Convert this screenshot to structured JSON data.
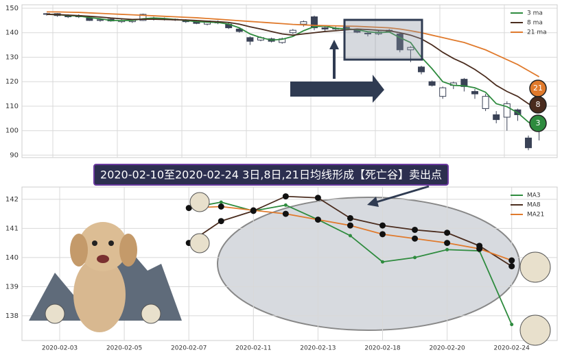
{
  "chart_data": [
    {
      "type": "candlestick",
      "ylim": [
        89,
        151.4
      ],
      "yticks": [
        90,
        100,
        110,
        120,
        130,
        140,
        150
      ],
      "grid": true,
      "legend": "upper right",
      "open": [
        147.5,
        147.8,
        147,
        146.5,
        146,
        145,
        145.5,
        144.5,
        144.5,
        145,
        146,
        145.8,
        145.5,
        145,
        144.5,
        143.5,
        144.5,
        143.5,
        141.5,
        138,
        137,
        137.5,
        136,
        140,
        143.5,
        146.5,
        142,
        141.5,
        142.2,
        141,
        139.8,
        139.5,
        140.5,
        139.5,
        133,
        126,
        120,
        114,
        118.5,
        121,
        116,
        109,
        106.5,
        105.5,
        108.5,
        97,
        100
      ],
      "high": [
        148,
        148,
        147.5,
        147.5,
        146.5,
        145.8,
        146,
        145.5,
        145.5,
        147.8,
        146.5,
        146.2,
        145.8,
        145.5,
        145,
        145,
        145,
        144,
        142,
        138.5,
        138.5,
        138,
        138,
        141.5,
        145,
        147,
        142.5,
        142.5,
        142.5,
        141.3,
        140.5,
        141,
        141.5,
        140,
        134.5,
        126.5,
        120.5,
        118,
        120,
        121.5,
        117,
        115,
        108,
        112,
        109,
        98,
        104
      ],
      "low": [
        147,
        146.5,
        146,
        146,
        144.8,
        144.5,
        144.5,
        144,
        144,
        144.8,
        145,
        145,
        144.8,
        144,
        143.5,
        143,
        143.5,
        141.5,
        140,
        135,
        136.5,
        136,
        135.5,
        139.5,
        142.5,
        141,
        140.5,
        141,
        141.2,
        139.8,
        138.5,
        139,
        140,
        132,
        128,
        123,
        118,
        113,
        117,
        116,
        113,
        108,
        103,
        100,
        104,
        92,
        96
      ],
      "close": [
        147.8,
        147,
        146.5,
        147,
        145,
        145.3,
        144.8,
        145,
        145.3,
        147.5,
        145.5,
        145.5,
        145.2,
        144.5,
        143.8,
        144.8,
        144,
        142,
        140.5,
        136.5,
        138,
        136.5,
        137.5,
        141,
        144.5,
        142,
        141.5,
        141.8,
        141.7,
        140.2,
        139.5,
        140.3,
        141,
        133,
        134,
        124,
        118.5,
        117.5,
        119.5,
        118,
        115,
        114,
        104.5,
        111,
        106.5,
        93,
        103
      ],
      "up_color": "#ffffff",
      "down_color": "#3a4256",
      "series": [
        {
          "name": "3 ma",
          "color": "#2e8b3e",
          "values": [
            147.5,
            147.4,
            147,
            146.8,
            146.2,
            145.7,
            145,
            145,
            145,
            145.7,
            146,
            145.8,
            145.4,
            145,
            144.5,
            144.3,
            144.2,
            143.5,
            142,
            139.5,
            138,
            137,
            137.3,
            138.5,
            140.8,
            142.5,
            142.7,
            141.8,
            141.6,
            141.2,
            140.4,
            140,
            140.3,
            138,
            136,
            130,
            125.3,
            120,
            118.5,
            118.3,
            117.5,
            115.7,
            111,
            109.8,
            107.3,
            103.5,
            100.8
          ]
        },
        {
          "name": "8 ma",
          "color": "#4a2c1e",
          "values": [
            147.5,
            147.4,
            147.2,
            147,
            146.7,
            146.4,
            146,
            145.7,
            145.4,
            145.5,
            145.5,
            145.4,
            145.3,
            145.2,
            145,
            144.7,
            144.5,
            144.2,
            143.5,
            142.4,
            141.5,
            140.5,
            139.5,
            139,
            139.5,
            140,
            140.5,
            140.8,
            141.2,
            141.5,
            141.3,
            141,
            140.8,
            140,
            139,
            137.5,
            135,
            132,
            129.5,
            127.5,
            125,
            122,
            118.5,
            116,
            114,
            111,
            108.5
          ]
        },
        {
          "name": "21 ma",
          "color": "#e07a2c",
          "values": [
            148.5,
            148.5,
            148.4,
            148.3,
            148.1,
            147.9,
            147.7,
            147.5,
            147.3,
            147.1,
            146.9,
            146.7,
            146.5,
            146.3,
            146.1,
            145.8,
            145.5,
            145.2,
            144.9,
            144.6,
            144.3,
            144,
            143.7,
            143.4,
            143.2,
            143,
            142.9,
            142.8,
            142.7,
            142.6,
            142.4,
            142.2,
            142,
            141.5,
            140.8,
            140,
            139,
            138,
            137,
            136,
            134.5,
            133,
            131,
            129,
            127,
            124.5,
            122
          ]
        }
      ],
      "annotation": "【死亡谷】卖出点",
      "badges": [
        "21",
        "8",
        "3"
      ]
    },
    {
      "type": "line",
      "ylim": [
        137.15,
        142.42
      ],
      "yticks": [
        138,
        139,
        140,
        141,
        142
      ],
      "grid": true,
      "legend": "upper right",
      "categories": [
        "2020-02-03",
        null,
        "2020-02-05",
        null,
        "2020-02-07",
        null,
        "2020-02-11",
        null,
        "2020-02-13",
        null,
        "2020-02-18",
        null,
        "2020-02-20",
        null,
        "2020-02-24"
      ],
      "series": [
        {
          "name": "MA3",
          "color": "#2e8b3e",
          "values": [
            null,
            null,
            null,
            null,
            141.7,
            141.9,
            141.6,
            141.8,
            141.3,
            140.75,
            139.85,
            140.0,
            140.27,
            140.23,
            137.7
          ]
        },
        {
          "name": "MA8",
          "color": "#4a2c1e",
          "values": [
            null,
            null,
            null,
            null,
            140.5,
            141.25,
            141.6,
            142.1,
            142.05,
            141.35,
            141.1,
            140.95,
            140.85,
            140.4,
            139.7
          ]
        },
        {
          "name": "MA21",
          "color": "#e07a2c",
          "values": [
            null,
            null,
            null,
            null,
            141.7,
            141.75,
            141.62,
            141.5,
            141.3,
            141.1,
            140.8,
            140.65,
            140.5,
            140.3,
            139.9
          ]
        }
      ]
    }
  ],
  "banner": "2020-02-10至2020-02-24 3日,8日,21日均线形成【死亡谷】卖出点"
}
